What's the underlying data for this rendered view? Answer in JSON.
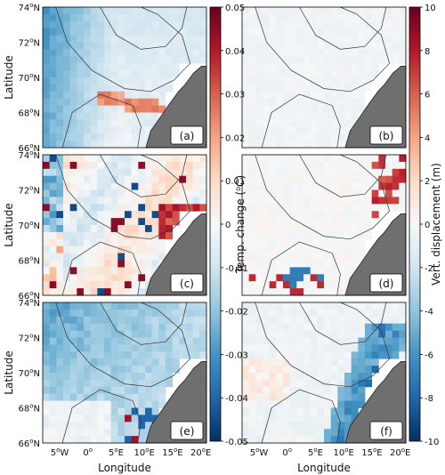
{
  "chart_data": {
    "type": "heatmap",
    "layout": "3x2 panel grid",
    "y_axis_label": "Latitude",
    "x_axis_label": "Longitude",
    "y_ticks": [
      "74",
      "72",
      "70",
      "68",
      "66"
    ],
    "y_tick_suffix": "N",
    "x_ticks": [
      "5",
      "0",
      "5",
      "10",
      "15",
      "20"
    ],
    "x_tick_suffixes": [
      "W",
      "",
      "E",
      "E",
      "E",
      "E"
    ],
    "degree_symbol": "o",
    "extent": {
      "lon": [
        -8,
        21
      ],
      "lat": [
        66,
        74
      ]
    },
    "colormap": "RdBu_r",
    "land_color": "#6f6f6f",
    "panels": [
      {
        "label": "(a)",
        "variable": "temperature",
        "pattern": "weak negative west, warm slope band"
      },
      {
        "label": "(b)",
        "variable": "displacement",
        "pattern": "near zero"
      },
      {
        "label": "(c)",
        "variable": "temperature",
        "pattern": "mixed, strong warm and cold patches"
      },
      {
        "label": "(d)",
        "variable": "displacement",
        "pattern": "mostly near zero, patches near coast"
      },
      {
        "label": "(e)",
        "variable": "temperature",
        "pattern": "broad cooling"
      },
      {
        "label": "(f)",
        "variable": "displacement",
        "pattern": "negative band along coast"
      }
    ],
    "colorbars": [
      {
        "name": "temperature",
        "label_main": "Temp. change (",
        "label_deg": "o",
        "label_end": "C)",
        "range": [
          -0.05,
          0.05
        ],
        "ticks": [
          "0.05",
          "0.04",
          "0.03",
          "0.02",
          "0.01",
          "0",
          "-0.01",
          "-0.02",
          "-0.03",
          "-0.04",
          "-0.05"
        ]
      },
      {
        "name": "displacement",
        "label": "Vert. displacement (m)",
        "range": [
          -10,
          10
        ],
        "ticks": [
          "10",
          "8",
          "6",
          "4",
          "2",
          "0",
          "-2",
          "-4",
          "-6",
          "-8",
          "-10"
        ]
      }
    ]
  }
}
